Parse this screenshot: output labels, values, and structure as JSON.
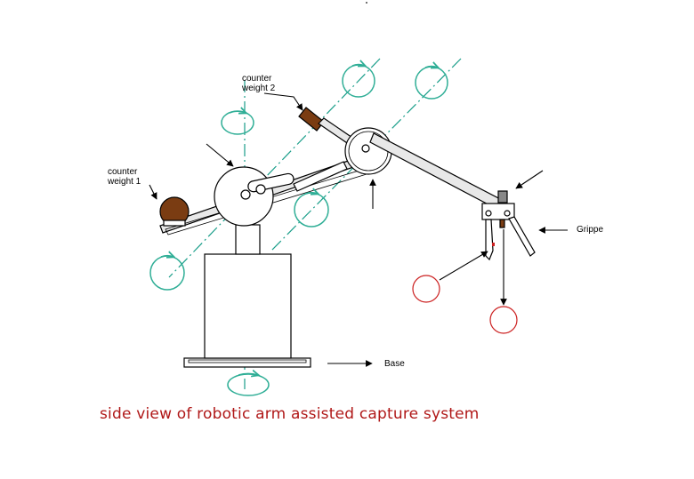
{
  "labels": {
    "counter_weight_1": [
      "counter",
      "weight 1"
    ],
    "counter_weight_2": [
      "counter",
      "weight 2"
    ],
    "gripper": "Grippe",
    "base": "Base"
  },
  "caption": "side view of robotic arm assisted capture system",
  "colors": {
    "axis": "#1a9e8a",
    "rotation": "#2fae96",
    "caption": "#b01818",
    "weight_brown": "#7a3c12",
    "target_red": "#cc2020",
    "arm_fill": "#e8e8e8",
    "outline": "#000000"
  }
}
